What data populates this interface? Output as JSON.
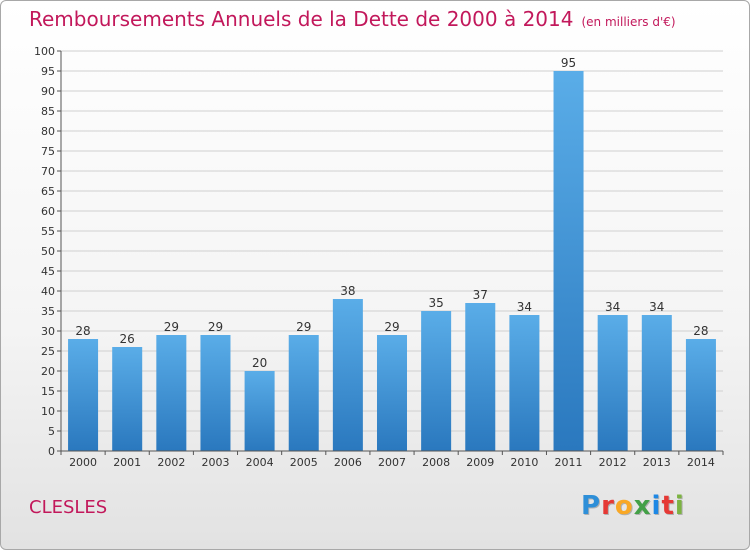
{
  "title": "Remboursements Annuels de la Dette de 2000 à 2014",
  "subtitle": "(en milliers d'€)",
  "commune": "CLESLES",
  "logo": {
    "letters": [
      "P",
      "r",
      "o",
      "x",
      "i",
      "t",
      "i"
    ],
    "colors": [
      "#2e8fd8",
      "#e53935",
      "#f9a825",
      "#43a047",
      "#1e88e5",
      "#e53935",
      "#7cb342"
    ]
  },
  "chart_data": {
    "type": "bar",
    "categories": [
      "2000",
      "2001",
      "2002",
      "2003",
      "2004",
      "2005",
      "2006",
      "2007",
      "2008",
      "2009",
      "2010",
      "2011",
      "2012",
      "2013",
      "2014"
    ],
    "values": [
      28,
      26,
      29,
      29,
      20,
      29,
      38,
      29,
      35,
      37,
      34,
      95,
      34,
      34,
      28
    ],
    "ylim": [
      0,
      100
    ],
    "yticks": [
      0,
      5,
      10,
      15,
      20,
      25,
      30,
      35,
      40,
      45,
      50,
      55,
      60,
      65,
      70,
      75,
      80,
      85,
      90,
      95,
      100
    ],
    "grid": true,
    "bar_color_light": "#5aade8",
    "bar_color_dark": "#2a78be",
    "axis_color": "#555555",
    "grid_color": "#d0d0d0"
  }
}
